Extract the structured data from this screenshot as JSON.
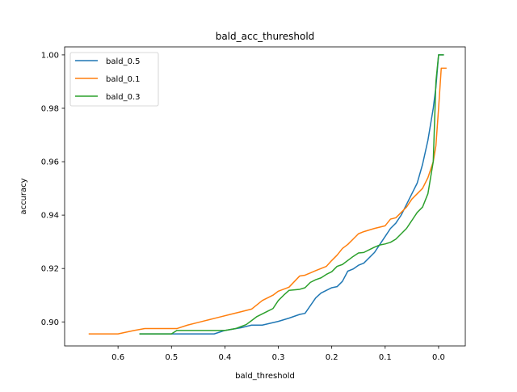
{
  "chart_data": {
    "type": "line",
    "title": "bald_acc_thureshold",
    "xlabel": "bald_threshold",
    "ylabel": "accuracy",
    "xlim": [
      0.7,
      -0.05
    ],
    "ylim": [
      0.891,
      1.003
    ],
    "x_inverted": true,
    "grid": false,
    "legend_position": "top-left",
    "x_ticks": [
      {
        "value": 0.6,
        "label": "0.6"
      },
      {
        "value": 0.5,
        "label": "0.5"
      },
      {
        "value": 0.4,
        "label": "0.4"
      },
      {
        "value": 0.3,
        "label": "0.3"
      },
      {
        "value": 0.2,
        "label": "0.2"
      },
      {
        "value": 0.1,
        "label": "0.1"
      },
      {
        "value": 0.0,
        "label": "0.0"
      }
    ],
    "y_ticks": [
      {
        "value": 0.9,
        "label": "0.90"
      },
      {
        "value": 0.92,
        "label": "0.92"
      },
      {
        "value": 0.94,
        "label": "0.94"
      },
      {
        "value": 0.96,
        "label": "0.96"
      },
      {
        "value": 0.98,
        "label": "0.98"
      },
      {
        "value": 1.0,
        "label": "1.00"
      }
    ],
    "series": [
      {
        "name": "bald_0.5",
        "color": "#1f77b4",
        "x": [
          0.56,
          0.5,
          0.45,
          0.42,
          0.4,
          0.37,
          0.35,
          0.33,
          0.3,
          0.28,
          0.26,
          0.25,
          0.23,
          0.22,
          0.2,
          0.19,
          0.18,
          0.17,
          0.16,
          0.15,
          0.14,
          0.12,
          0.11,
          0.1,
          0.09,
          0.08,
          0.07,
          0.06,
          0.05,
          0.04,
          0.03,
          0.02,
          0.01,
          0.005,
          0.0,
          -0.002,
          -0.01
        ],
        "y": [
          0.8955,
          0.8955,
          0.8955,
          0.8955,
          0.8968,
          0.8978,
          0.8988,
          0.8988,
          0.9002,
          0.9014,
          0.9028,
          0.9032,
          0.909,
          0.9108,
          0.9128,
          0.9132,
          0.9152,
          0.919,
          0.9198,
          0.9212,
          0.922,
          0.926,
          0.929,
          0.932,
          0.935,
          0.937,
          0.94,
          0.944,
          0.948,
          0.952,
          0.959,
          0.968,
          0.98,
          0.988,
          1.0,
          1.0,
          1.0
        ]
      },
      {
        "name": "bald_0.1",
        "color": "#ff7f0e",
        "x": [
          0.655,
          0.6,
          0.57,
          0.55,
          0.5,
          0.49,
          0.47,
          0.45,
          0.43,
          0.41,
          0.39,
          0.37,
          0.35,
          0.33,
          0.31,
          0.3,
          0.28,
          0.26,
          0.25,
          0.23,
          0.21,
          0.2,
          0.19,
          0.18,
          0.17,
          0.16,
          0.15,
          0.14,
          0.12,
          0.1,
          0.09,
          0.08,
          0.07,
          0.06,
          0.05,
          0.04,
          0.03,
          0.02,
          0.01,
          0.005,
          0.0,
          -0.005,
          -0.015
        ],
        "y": [
          0.8955,
          0.8955,
          0.8968,
          0.8975,
          0.8975,
          0.8975,
          0.8988,
          0.8998,
          0.9008,
          0.9018,
          0.9028,
          0.9038,
          0.9048,
          0.908,
          0.91,
          0.9115,
          0.913,
          0.9172,
          0.9175,
          0.9192,
          0.9208,
          0.923,
          0.925,
          0.9275,
          0.929,
          0.931,
          0.933,
          0.9338,
          0.935,
          0.936,
          0.9385,
          0.939,
          0.941,
          0.943,
          0.946,
          0.948,
          0.95,
          0.954,
          0.96,
          0.966,
          0.98,
          0.995,
          0.995
        ]
      },
      {
        "name": "bald_0.3",
        "color": "#2ca02c",
        "x": [
          0.56,
          0.5,
          0.49,
          0.45,
          0.42,
          0.4,
          0.38,
          0.36,
          0.35,
          0.34,
          0.32,
          0.31,
          0.3,
          0.29,
          0.28,
          0.27,
          0.26,
          0.25,
          0.24,
          0.23,
          0.22,
          0.21,
          0.2,
          0.19,
          0.18,
          0.16,
          0.15,
          0.14,
          0.13,
          0.12,
          0.11,
          0.1,
          0.09,
          0.08,
          0.07,
          0.06,
          0.05,
          0.04,
          0.03,
          0.02,
          0.01,
          0.005,
          0.0,
          -0.01
        ],
        "y": [
          0.8955,
          0.8955,
          0.8968,
          0.8968,
          0.8968,
          0.8968,
          0.8975,
          0.899,
          0.9005,
          0.902,
          0.904,
          0.905,
          0.908,
          0.91,
          0.9118,
          0.912,
          0.9122,
          0.9128,
          0.9148,
          0.9158,
          0.9165,
          0.9178,
          0.9188,
          0.9208,
          0.9215,
          0.9245,
          0.9258,
          0.926,
          0.927,
          0.928,
          0.9288,
          0.9292,
          0.9298,
          0.931,
          0.933,
          0.935,
          0.938,
          0.941,
          0.943,
          0.948,
          0.96,
          0.99,
          1.0,
          1.0
        ]
      }
    ]
  }
}
